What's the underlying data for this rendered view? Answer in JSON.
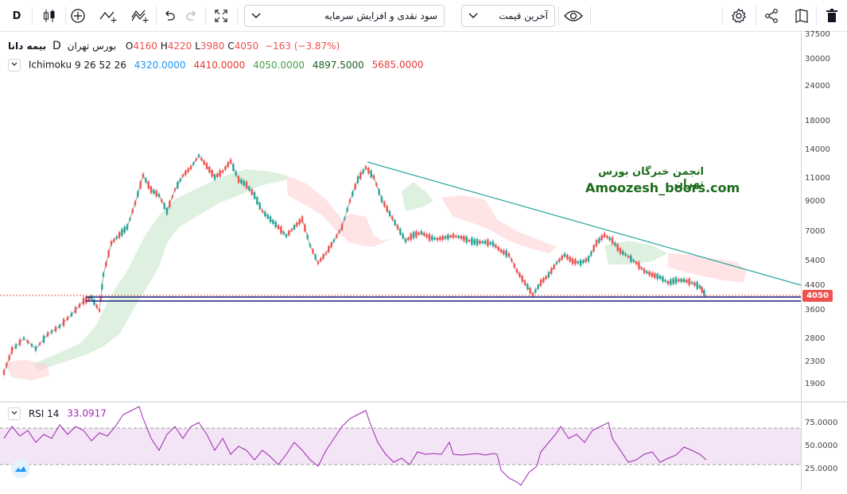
{
  "toolbar": {
    "interval": "D",
    "symbol_select": "سود نقدی و افزایش سرمایه",
    "price_type_select": "آخرین قیمت"
  },
  "legend": {
    "symbol_name": "بیمه دانا",
    "exchange": "بورس تهران",
    "interval": "D",
    "open_label": "O",
    "open": "4160",
    "high_label": "H",
    "high": "4220",
    "low_label": "L",
    "low": "3980",
    "close_label": "C",
    "close": "4050",
    "change": "−163 (−3.87%)"
  },
  "ichimoku": {
    "name": "Ichimoku",
    "params": "9 26 52 26",
    "v1": "4320.0000",
    "v2": "4410.0000",
    "v3": "4050.0000",
    "v4": "4897.5000",
    "v5": "5685.0000",
    "colors": [
      "#2196f3",
      "#e53935",
      "#43a047",
      "#1b5e20",
      "#e53935"
    ]
  },
  "rsi": {
    "name": "RSI 14",
    "value": "33.0917"
  },
  "watermark": {
    "line1": "انجمن خبرگان بورس تهران",
    "line2": "Amoozesh_boors.com"
  },
  "price_axis": {
    "ticks": [
      "37500",
      "30000",
      "24000",
      "18000",
      "14000",
      "11000",
      "9000",
      "7000",
      "5400",
      "4400",
      "3600",
      "2800",
      "2300",
      "1900"
    ],
    "last_price": "4050"
  },
  "rsi_axis": {
    "ticks": [
      "75.0000",
      "50.0000",
      "25.0000"
    ]
  },
  "colors": {
    "up": "#26a69a",
    "down": "#ef5350",
    "trendline": "#26a69a",
    "support": "#1a237e",
    "rsi": "#9c27b0",
    "rsi_band": "#f3e5f5"
  }
}
